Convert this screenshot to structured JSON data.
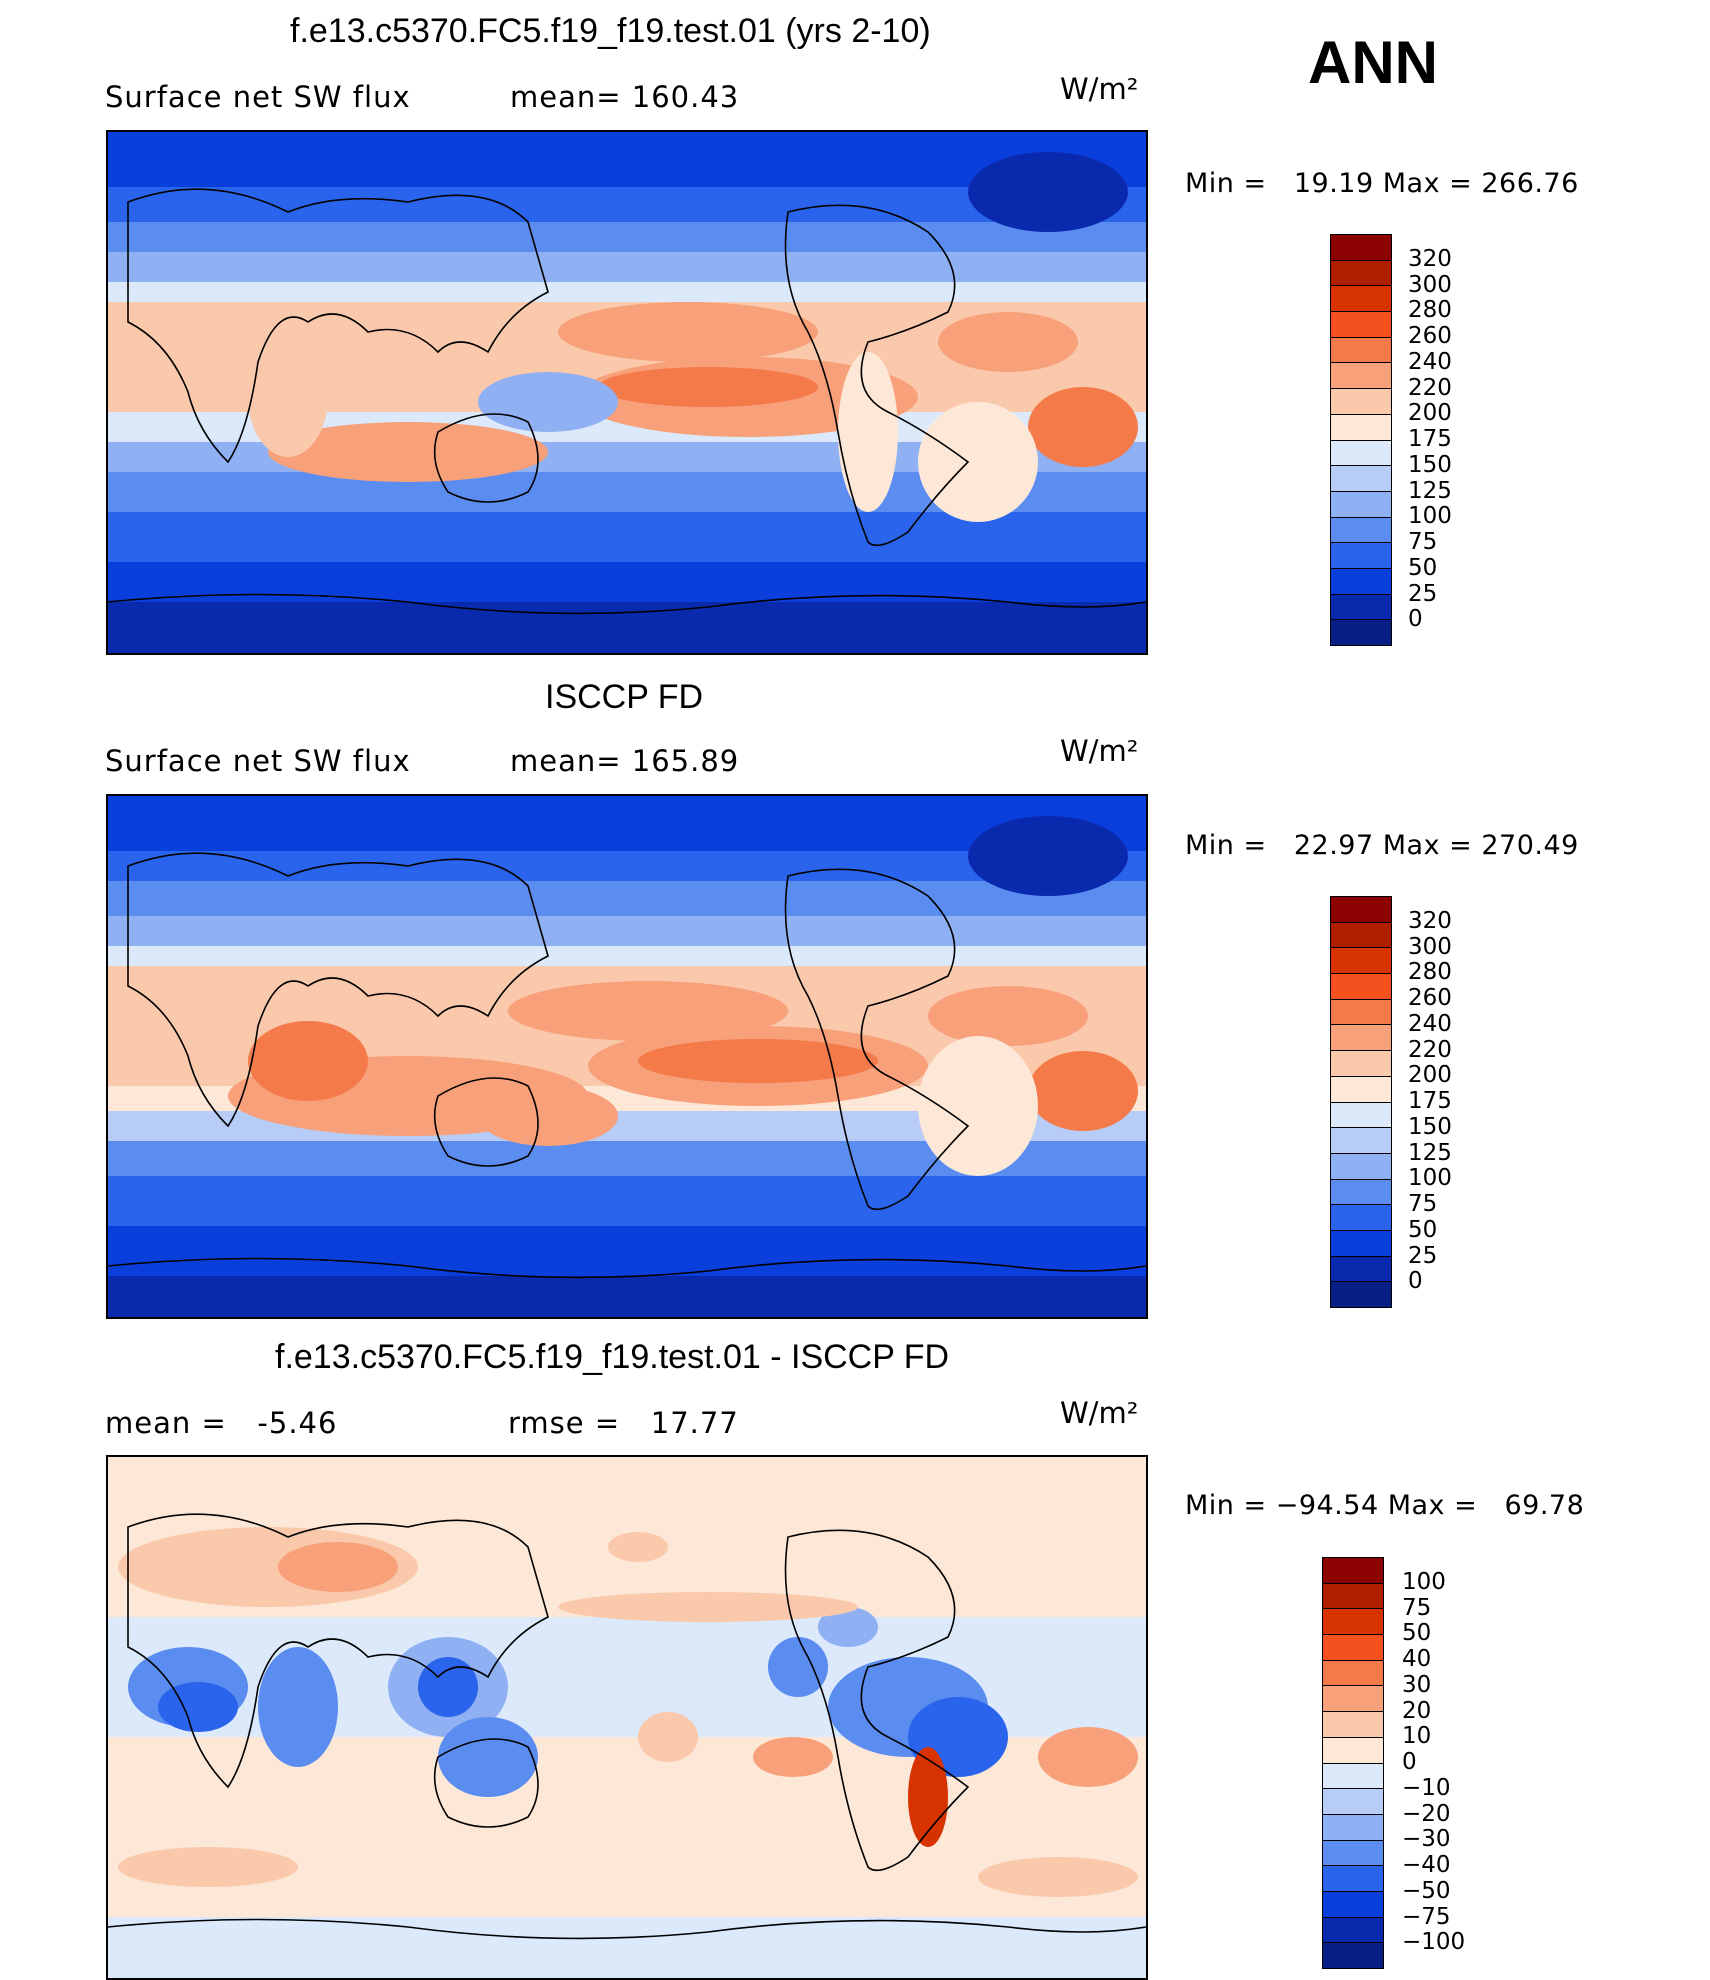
{
  "season": "ANN",
  "panels": [
    {
      "title": "f.e13.c5370.FC5.f19_f19.test.01 (yrs 2-10)",
      "left_text": "Surface net SW flux",
      "center_text": "mean= 160.43",
      "units": "W/m²",
      "minmax": "Min =   19.19 Max = 266.76",
      "colorbar": {
        "labels": [
          "320",
          "300",
          "280",
          "260",
          "240",
          "220",
          "200",
          "175",
          "150",
          "125",
          "100",
          "75",
          "50",
          "25",
          "0"
        ],
        "colors": [
          "#8b0000",
          "#b01e00",
          "#d63300",
          "#f4511e",
          "#f47a4a",
          "#f7a07a",
          "#fac9ab",
          "#fde8d8",
          "#dbe9fb",
          "#b7cdf7",
          "#8fb0f2",
          "#5b8df0",
          "#2b64ec",
          "#0a3fdc",
          "#0a2aae",
          "#081f85"
        ]
      }
    },
    {
      "title": "ISCCP FD",
      "left_text": "Surface net SW flux",
      "center_text": "mean= 165.89",
      "units": "W/m²",
      "minmax": "Min =   22.97 Max = 270.49",
      "colorbar": {
        "labels": [
          "320",
          "300",
          "280",
          "260",
          "240",
          "220",
          "200",
          "175",
          "150",
          "125",
          "100",
          "75",
          "50",
          "25",
          "0"
        ],
        "colors": [
          "#8b0000",
          "#b01e00",
          "#d63300",
          "#f4511e",
          "#f47a4a",
          "#f7a07a",
          "#fac9ab",
          "#fde8d8",
          "#dbe9fb",
          "#b7cdf7",
          "#8fb0f2",
          "#5b8df0",
          "#2b64ec",
          "#0a3fdc",
          "#0a2aae",
          "#081f85"
        ]
      }
    },
    {
      "title": "f.e13.c5370.FC5.f19_f19.test.01 - ISCCP FD",
      "left_text": "mean =   -5.46",
      "center_text": "rmse =   17.77",
      "units": "W/m²",
      "minmax": "Min = −94.54 Max =   69.78",
      "colorbar": {
        "labels": [
          "100",
          "75",
          "50",
          "40",
          "30",
          "20",
          "10",
          "0",
          "−10",
          "−20",
          "−30",
          "−40",
          "−50",
          "−75",
          "−100"
        ],
        "colors": [
          "#8b0000",
          "#b01e00",
          "#d63300",
          "#f4511e",
          "#f47a4a",
          "#f7a07a",
          "#fac9ab",
          "#fde8d8",
          "#dbe9fb",
          "#b7cdf7",
          "#8fb0f2",
          "#5b8df0",
          "#2b64ec",
          "#0a3fdc",
          "#0a2aae",
          "#081f85"
        ]
      }
    }
  ]
}
